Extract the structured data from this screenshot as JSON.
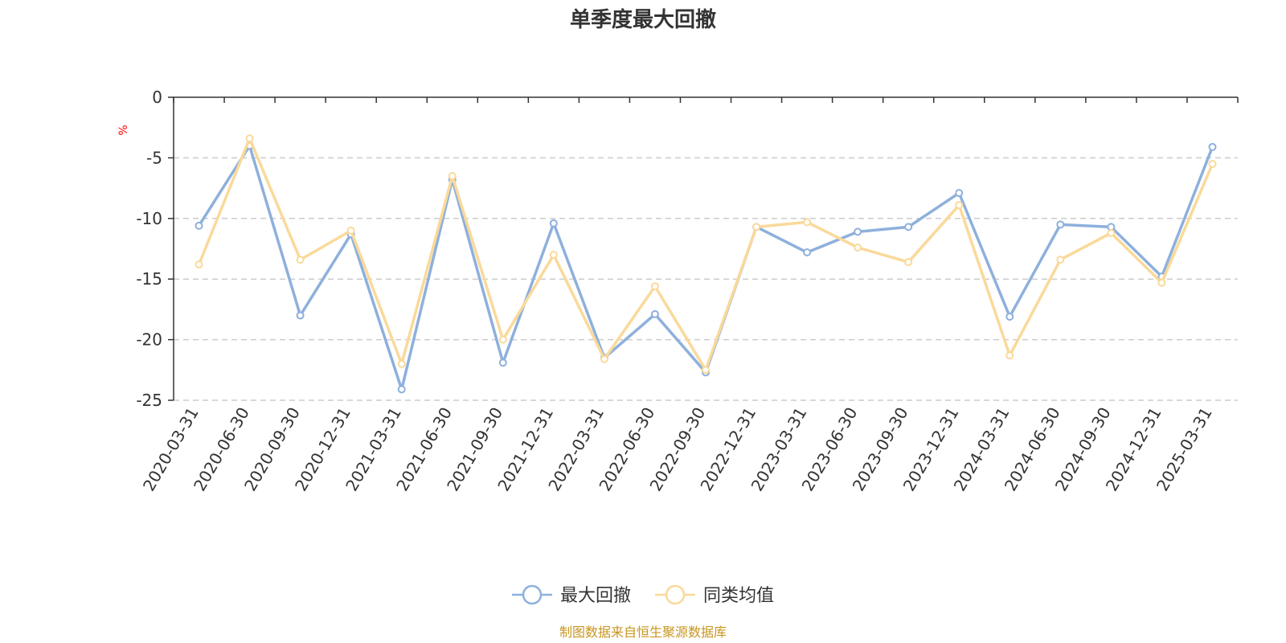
{
  "chart_data": {
    "type": "line",
    "title": "单季度最大回撤",
    "ylabel": "%",
    "xlabel": "",
    "ylim": [
      -25,
      0
    ],
    "yticks": [
      0,
      -5,
      -10,
      -15,
      -20,
      -25
    ],
    "grid": "horizontal-dashed",
    "legend_position": "bottom-center",
    "categories": [
      "2020-03-31",
      "2020-06-30",
      "2020-09-30",
      "2020-12-31",
      "2021-03-31",
      "2021-06-30",
      "2021-09-30",
      "2021-12-31",
      "2022-03-31",
      "2022-06-30",
      "2022-09-30",
      "2022-12-31",
      "2023-03-31",
      "2023-06-30",
      "2023-09-30",
      "2023-12-31",
      "2024-03-31",
      "2024-06-30",
      "2024-09-30",
      "2024-12-31",
      "2025-03-31"
    ],
    "series": [
      {
        "name": "最大回撤",
        "color": "#8eb0dc",
        "values": [
          -10.6,
          -4.0,
          -18.0,
          -11.3,
          -24.1,
          -6.8,
          -21.9,
          -10.4,
          -21.5,
          -17.9,
          -22.7,
          -10.7,
          -12.8,
          -11.1,
          -10.7,
          -7.9,
          -18.1,
          -10.5,
          -10.7,
          -14.8,
          -4.1
        ]
      },
      {
        "name": "同类均值",
        "color": "#fad99a",
        "values": [
          -13.8,
          -3.4,
          -13.4,
          -11.0,
          -22.0,
          -6.5,
          -20.0,
          -13.0,
          -21.6,
          -15.6,
          -22.5,
          -10.7,
          -10.3,
          -12.4,
          -13.6,
          -8.9,
          -21.3,
          -13.4,
          -11.2,
          -15.3,
          -5.5
        ]
      }
    ],
    "source": "制图数据来自恒生聚源数据库",
    "unit_color": "#ff0000",
    "source_color": "#c8961e"
  }
}
